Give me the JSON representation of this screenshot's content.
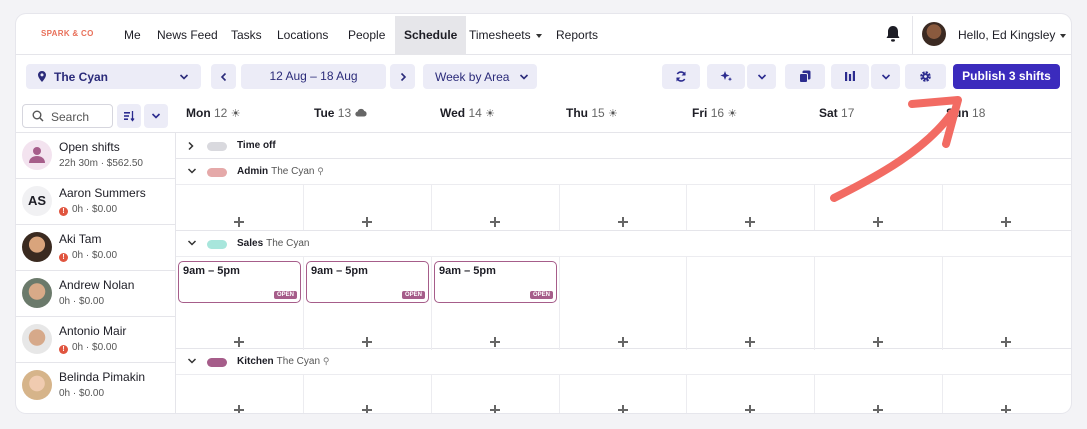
{
  "nav": {
    "logo": "SPARK & CO",
    "items": [
      "Me",
      "News Feed",
      "Tasks",
      "Locations",
      "People",
      "Schedule",
      "Timesheets",
      "Reports"
    ],
    "active": "Schedule",
    "greeting": "Hello, Ed Kingsley"
  },
  "toolbar": {
    "location": "The Cyan",
    "date_range": "12 Aug – 18 Aug",
    "view": "Week by Area",
    "publish_label": "Publish 3 shifts"
  },
  "search": {
    "placeholder": "Search"
  },
  "days": [
    {
      "name": "Mon",
      "num": "12",
      "weather": "sun"
    },
    {
      "name": "Tue",
      "num": "13",
      "weather": "cloud"
    },
    {
      "name": "Wed",
      "num": "14",
      "weather": "sun"
    },
    {
      "name": "Thu",
      "num": "15",
      "weather": "sun"
    },
    {
      "name": "Fri",
      "num": "16",
      "weather": "sun"
    },
    {
      "name": "Sat",
      "num": "17",
      "weather": ""
    },
    {
      "name": "Sun",
      "num": "18",
      "weather": ""
    }
  ],
  "employees": [
    {
      "name": "Open shifts",
      "sub": "22h 30m · $562.50",
      "warn": false
    },
    {
      "name": "Aaron Summers",
      "initials": "AS",
      "sub": "0h · $0.00",
      "warn": true
    },
    {
      "name": "Aki Tam",
      "sub": "0h · $0.00",
      "warn": true
    },
    {
      "name": "Andrew Nolan",
      "sub": "0h · $0.00",
      "warn": false
    },
    {
      "name": "Antonio Mair",
      "sub": "0h · $0.00",
      "warn": true
    },
    {
      "name": "Belinda Pimakin",
      "sub": "0h · $0.00",
      "warn": false
    }
  ],
  "sections": [
    {
      "name": "Time off",
      "location": "",
      "color": "#d9d9de",
      "expanded": false
    },
    {
      "name": "Admin",
      "location": "The Cyan",
      "color": "#e5a9a9",
      "expanded": true
    },
    {
      "name": "Sales",
      "location": "The Cyan",
      "color": "#a8e6dc",
      "expanded": true
    },
    {
      "name": "Kitchen",
      "location": "The Cyan",
      "color": "#a65d8a",
      "expanded": true
    }
  ],
  "shifts": [
    {
      "time": "9am – 5pm",
      "badge": "OPEN"
    },
    {
      "time": "9am – 5pm",
      "badge": "OPEN"
    },
    {
      "time": "9am – 5pm",
      "badge": "OPEN"
    }
  ],
  "colors": {
    "accent": "#3b2bbd",
    "arrow": "#f26b63"
  }
}
